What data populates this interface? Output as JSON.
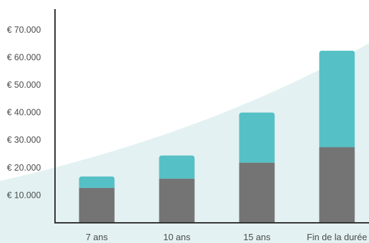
{
  "chart_data": {
    "type": "bar",
    "stacked": true,
    "categories": [
      "7 ans",
      "10 ans",
      "15 ans",
      "Fin de la durée"
    ],
    "series": [
      {
        "values": [
          12700,
          16000,
          21800,
          27400
        ],
        "color": "#747474"
      },
      {
        "values": [
          4100,
          8400,
          18200,
          35000
        ],
        "color": "#55c0c5"
      }
    ],
    "y_ticks": [
      10000,
      20000,
      30000,
      40000,
      50000,
      60000,
      70000
    ],
    "y_tick_labels": [
      "€ 10.000",
      "€ 20.000",
      "€ 30.000",
      "€ 40.000",
      "€ 50.000",
      "€ 60.000",
      "€ 70.000"
    ],
    "ylim": [
      0,
      75000
    ],
    "grid": false,
    "legend": "none",
    "title": "",
    "xlabel": "",
    "ylabel": "",
    "background_curve_color": "#e3f1f2"
  }
}
